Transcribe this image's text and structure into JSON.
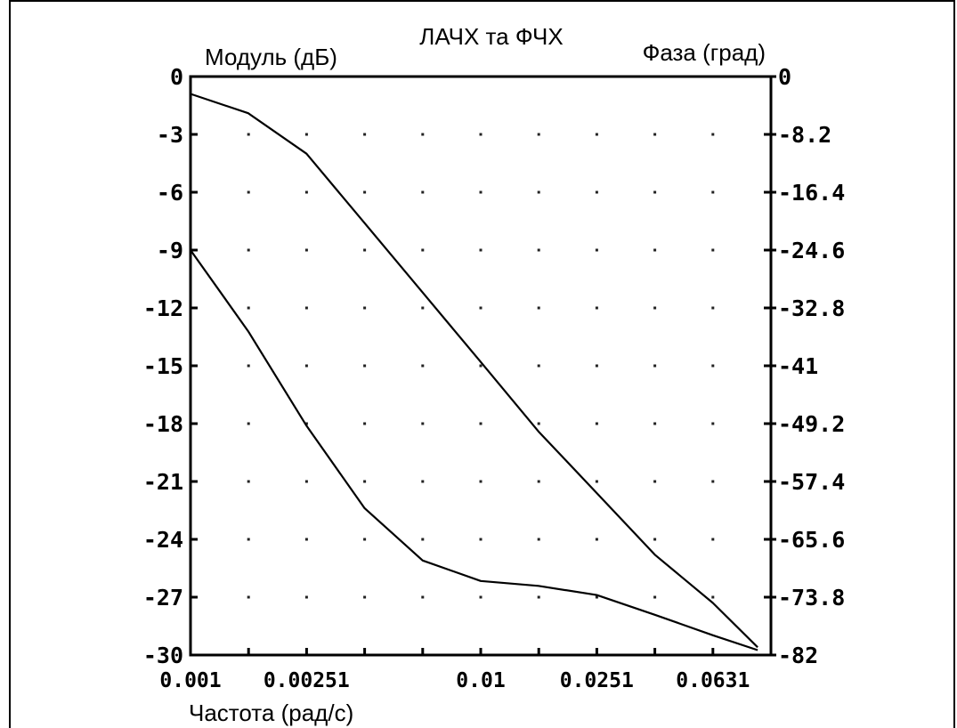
{
  "chart_data": {
    "type": "line",
    "title": "ЛАЧХ та ФЧХ",
    "xlabel": "Частота (рад/с)",
    "ylabel_left": "Модуль (дБ)",
    "ylabel_right": "Фаза (град)",
    "x_scale": "log",
    "xlim": [
      0.001,
      0.1
    ],
    "ylim_left": [
      -30,
      0
    ],
    "ylim_right": [
      -82,
      0
    ],
    "grid": "dotted",
    "x_tick_labels": [
      {
        "value": 0.001,
        "label": "0.001"
      },
      {
        "value": 0.00251,
        "label": "0.00251"
      },
      {
        "value": 0.01,
        "label": "0.01"
      },
      {
        "value": 0.0251,
        "label": "0.0251"
      },
      {
        "value": 0.0631,
        "label": "0.0631"
      }
    ],
    "y_left_ticks": [
      "0",
      "-3",
      "-6",
      "-9",
      "-12",
      "-15",
      "-18",
      "-21",
      "-24",
      "-27",
      "-30"
    ],
    "y_right_ticks": [
      "0",
      "-8.2",
      "-16.4",
      "-24.6",
      "-32.8",
      "-41",
      "-49.2",
      "-57.4",
      "-65.6",
      "-73.8",
      "-82"
    ],
    "series": [
      {
        "axis": "left",
        "values": [
          {
            "x": 0.001,
            "y": -0.9
          },
          {
            "x": 0.00158,
            "y": -1.9
          },
          {
            "x": 0.00251,
            "y": -4.0
          },
          {
            "x": 0.00398,
            "y": -7.6
          },
          {
            "x": 0.00631,
            "y": -11.2
          },
          {
            "x": 0.01,
            "y": -14.8
          },
          {
            "x": 0.0158,
            "y": -18.4
          },
          {
            "x": 0.0251,
            "y": -21.6
          },
          {
            "x": 0.0398,
            "y": -24.8
          },
          {
            "x": 0.0631,
            "y": -27.3
          },
          {
            "x": 0.09,
            "y": -29.6
          }
        ]
      },
      {
        "axis": "right",
        "values": [
          {
            "x": 0.001,
            "y": -24.6
          },
          {
            "x": 0.00158,
            "y": -36.1
          },
          {
            "x": 0.00251,
            "y": -49.5
          },
          {
            "x": 0.00398,
            "y": -61.2
          },
          {
            "x": 0.00631,
            "y": -68.6
          },
          {
            "x": 0.01,
            "y": -71.5
          },
          {
            "x": 0.0158,
            "y": -72.2
          },
          {
            "x": 0.0251,
            "y": -73.5
          },
          {
            "x": 0.0398,
            "y": -76.3
          },
          {
            "x": 0.0631,
            "y": -79.2
          },
          {
            "x": 0.09,
            "y": -81.3
          }
        ]
      }
    ]
  }
}
